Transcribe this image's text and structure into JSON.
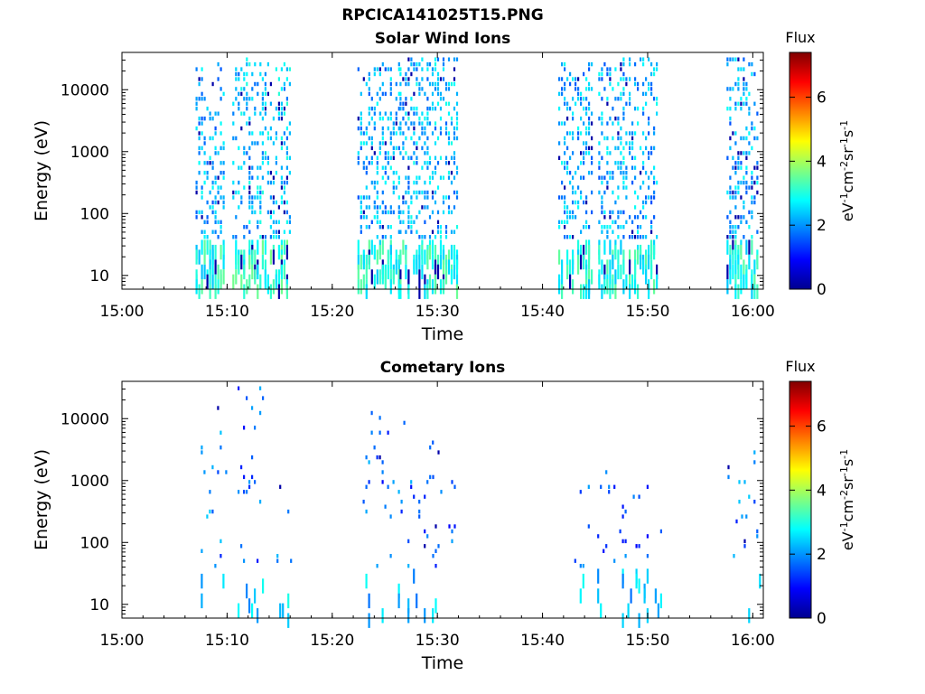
{
  "figure_title": "RPCICA141025T15.PNG",
  "colorbar": {
    "label": "Flux",
    "unit_base": "eV",
    "unit_parts": [
      "eV",
      "-1",
      "cm",
      "-2",
      "sr",
      "-1",
      "s",
      "-1"
    ],
    "ticks": [
      "0",
      "2",
      "4",
      "6"
    ],
    "range": [
      0,
      7.4
    ],
    "colormap": "jet"
  },
  "chart_data": [
    {
      "type": "heatmap",
      "title": "Solar Wind Ions",
      "xlabel": "Time",
      "ylabel": "Energy (eV)",
      "y_scale": "log",
      "ylim": [
        6,
        40000
      ],
      "xlim": [
        "15:00",
        "16:01"
      ],
      "x_ticks": [
        "15:00",
        "15:10",
        "15:20",
        "15:30",
        "15:40",
        "15:50",
        "16:00"
      ],
      "y_ticks": [
        10,
        100,
        1000,
        10000
      ],
      "y_tick_labels": [
        "10",
        "100",
        "1000",
        "10000"
      ],
      "clusters": [
        {
          "t_start": 7.0,
          "t_end": 9.6,
          "e_min": 6,
          "e_max": 30000,
          "flux": 2.2
        },
        {
          "t_start": 10.5,
          "t_end": 13.2,
          "e_min": 6,
          "e_max": 38000,
          "flux": 2.3
        },
        {
          "t_start": 13.3,
          "t_end": 16.0,
          "e_min": 6,
          "e_max": 38000,
          "flux": 2.4
        },
        {
          "t_start": 22.4,
          "t_end": 26.3,
          "e_min": 6,
          "e_max": 28000,
          "flux": 2.2
        },
        {
          "t_start": 26.4,
          "t_end": 29.2,
          "e_min": 6,
          "e_max": 38000,
          "flux": 2.3
        },
        {
          "t_start": 29.2,
          "t_end": 31.8,
          "e_min": 6,
          "e_max": 34000,
          "flux": 2.3
        },
        {
          "t_start": 41.5,
          "t_end": 44.8,
          "e_min": 6,
          "e_max": 28000,
          "flux": 2.2
        },
        {
          "t_start": 45.3,
          "t_end": 47.9,
          "e_min": 6,
          "e_max": 33000,
          "flux": 2.2
        },
        {
          "t_start": 48.2,
          "t_end": 51.0,
          "e_min": 6,
          "e_max": 36000,
          "flux": 2.2
        },
        {
          "t_start": 57.5,
          "t_end": 60.5,
          "e_min": 6,
          "e_max": 38000,
          "flux": 2.2
        }
      ]
    },
    {
      "type": "heatmap",
      "title": "Cometary Ions",
      "xlabel": "Time",
      "ylabel": "Energy (eV)",
      "y_scale": "log",
      "ylim": [
        6,
        40000
      ],
      "xlim": [
        "15:00",
        "16:01"
      ],
      "x_ticks": [
        "15:00",
        "15:10",
        "15:20",
        "15:30",
        "15:40",
        "15:50",
        "16:00"
      ],
      "y_ticks": [
        10,
        100,
        1000,
        10000
      ],
      "y_tick_labels": [
        "10",
        "100",
        "1000",
        "10000"
      ],
      "clusters": [
        {
          "t_start": 7.5,
          "t_end": 10.0,
          "e_min": 6,
          "e_max": 18000,
          "flux": 1.8
        },
        {
          "t_start": 11.0,
          "t_end": 13.6,
          "e_min": 6,
          "e_max": 38000,
          "flux": 1.6
        },
        {
          "t_start": 14.7,
          "t_end": 16.0,
          "e_min": 6,
          "e_max": 1000,
          "flux": 1.7
        },
        {
          "t_start": 22.9,
          "t_end": 26.8,
          "e_min": 6,
          "e_max": 15000,
          "flux": 1.6
        },
        {
          "t_start": 26.9,
          "t_end": 29.5,
          "e_min": 6,
          "e_max": 5000,
          "flux": 1.6
        },
        {
          "t_start": 29.5,
          "t_end": 31.8,
          "e_min": 6,
          "e_max": 4000,
          "flux": 1.5
        },
        {
          "t_start": 42.5,
          "t_end": 44.5,
          "e_min": 6,
          "e_max": 1200,
          "flux": 1.8
        },
        {
          "t_start": 45.2,
          "t_end": 47.0,
          "e_min": 6,
          "e_max": 1500,
          "flux": 1.6
        },
        {
          "t_start": 47.3,
          "t_end": 49.8,
          "e_min": 6,
          "e_max": 900,
          "flux": 1.5
        },
        {
          "t_start": 49.9,
          "t_end": 51.2,
          "e_min": 6,
          "e_max": 4000,
          "flux": 1.6
        },
        {
          "t_start": 57.6,
          "t_end": 59.4,
          "e_min": 40,
          "e_max": 2000,
          "flux": 1.8
        },
        {
          "t_start": 59.3,
          "t_end": 60.6,
          "e_min": 6,
          "e_max": 8000,
          "flux": 1.8
        }
      ]
    }
  ]
}
